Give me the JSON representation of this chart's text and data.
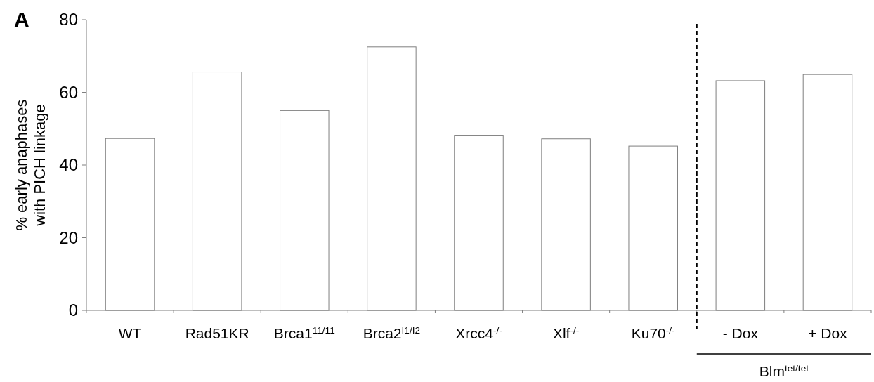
{
  "chart_data": {
    "type": "bar",
    "ylabel": "% early anaphases with PICH linkage",
    "categories": [
      "WT",
      "Rad51KR",
      "Brca1$^{11/11}$",
      "Brca2$^{I1/I2}$",
      "Xrcc4$^{-/-}$",
      "Xlf$^{-/-}$",
      "Ku70$^{-/-}$",
      "- Dox",
      "+ Dox"
    ],
    "values": [
      47.3,
      65.6,
      55,
      72.5,
      48.2,
      47.2,
      45.2,
      63.2,
      64.9
    ],
    "color": "#ffffff",
    "ylim": [
      0,
      80
    ],
    "yticks": [
      0,
      20,
      40,
      60,
      80
    ],
    "annotations": [
      "A",
      "Blm$^{tet/tet}$"
    ]
  }
}
